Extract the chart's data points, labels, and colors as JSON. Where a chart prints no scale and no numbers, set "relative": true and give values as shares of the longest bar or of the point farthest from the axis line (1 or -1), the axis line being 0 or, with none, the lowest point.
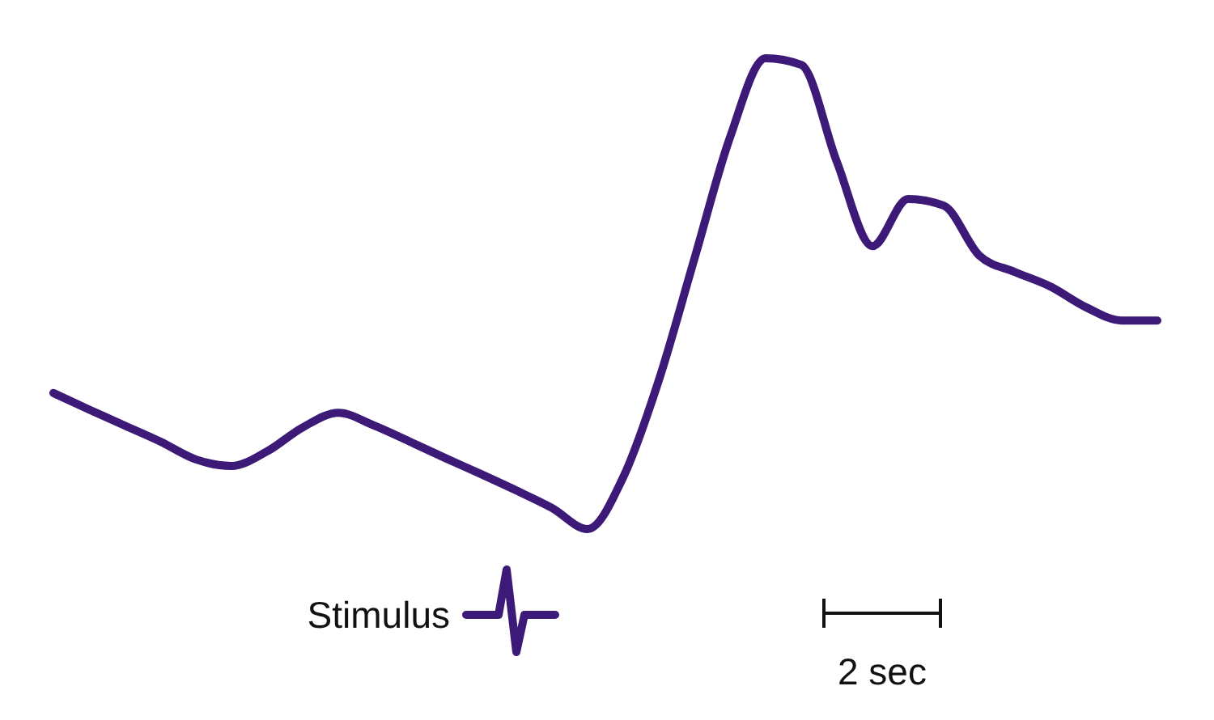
{
  "chart_data": {
    "type": "line",
    "relative": true,
    "categories": [
      null,
      null,
      null,
      null,
      null,
      null,
      null,
      null,
      null,
      null,
      null,
      null,
      null,
      null,
      null,
      null,
      null,
      null,
      null,
      null,
      null,
      null,
      null,
      null,
      null,
      null,
      null,
      null,
      null,
      null,
      null,
      null
    ],
    "series": [
      {
        "color": "#3d1a78",
        "values": [
          0.289,
          0.254,
          0.22,
          0.186,
          0.148,
          0.134,
          0.165,
          0.216,
          0.247,
          0.22,
          0.186,
          0.151,
          0.117,
          0.082,
          0.045,
          0,
          0.11,
          0.316,
          0.574,
          0.832,
          1,
          0.986,
          0.78,
          0.601,
          0.701,
          0.687,
          0.581,
          0.546,
          0.515,
          0.471,
          0.443,
          0.443
        ]
      }
    ],
    "annotations": [
      "Stimulus",
      "2 sec"
    ]
  }
}
